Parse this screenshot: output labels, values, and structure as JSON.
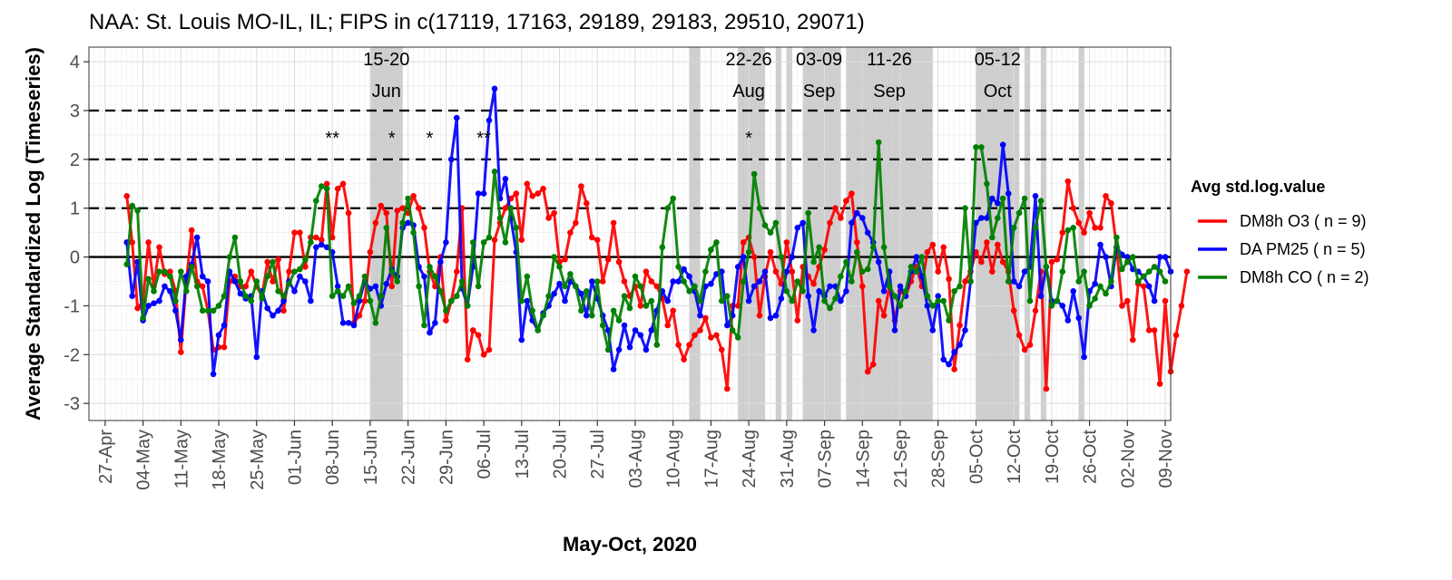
{
  "chart_data": {
    "type": "line",
    "title": "NAA: St. Louis MO-IL, IL; FIPS in c(17119, 17163, 29189, 29183, 29510, 29071)",
    "xlabel": "May-Oct, 2020",
    "ylabel": "Average Standardized Log (Timeseries)",
    "x_range": [
      "2020-04-24",
      "2020-11-10"
    ],
    "ylim": [
      -3.35,
      4.3
    ],
    "y_ticks": [
      -3,
      -2,
      -1,
      0,
      1,
      2,
      3,
      4
    ],
    "x_ticks": [
      {
        "date": "2020-04-27",
        "label": "27-Apr"
      },
      {
        "date": "2020-05-04",
        "label": "04-May"
      },
      {
        "date": "2020-05-11",
        "label": "11-May"
      },
      {
        "date": "2020-05-18",
        "label": "18-May"
      },
      {
        "date": "2020-05-25",
        "label": "25-May"
      },
      {
        "date": "2020-06-01",
        "label": "01-Jun"
      },
      {
        "date": "2020-06-08",
        "label": "08-Jun"
      },
      {
        "date": "2020-06-15",
        "label": "15-Jun"
      },
      {
        "date": "2020-06-22",
        "label": "22-Jun"
      },
      {
        "date": "2020-06-29",
        "label": "29-Jun"
      },
      {
        "date": "2020-07-06",
        "label": "06-Jul"
      },
      {
        "date": "2020-07-13",
        "label": "13-Jul"
      },
      {
        "date": "2020-07-20",
        "label": "20-Jul"
      },
      {
        "date": "2020-07-27",
        "label": "27-Jul"
      },
      {
        "date": "2020-08-03",
        "label": "03-Aug"
      },
      {
        "date": "2020-08-10",
        "label": "10-Aug"
      },
      {
        "date": "2020-08-17",
        "label": "17-Aug"
      },
      {
        "date": "2020-08-24",
        "label": "24-Aug"
      },
      {
        "date": "2020-08-31",
        "label": "31-Aug"
      },
      {
        "date": "2020-09-07",
        "label": "07-Sep"
      },
      {
        "date": "2020-09-14",
        "label": "14-Sep"
      },
      {
        "date": "2020-09-21",
        "label": "21-Sep"
      },
      {
        "date": "2020-09-28",
        "label": "28-Sep"
      },
      {
        "date": "2020-10-05",
        "label": "05-Oct"
      },
      {
        "date": "2020-10-12",
        "label": "12-Oct"
      },
      {
        "date": "2020-10-19",
        "label": "19-Oct"
      },
      {
        "date": "2020-10-26",
        "label": "26-Oct"
      },
      {
        "date": "2020-11-02",
        "label": "02-Nov"
      },
      {
        "date": "2020-11-09",
        "label": "09-Nov"
      }
    ],
    "reference_lines": {
      "solid": [
        0
      ],
      "dashed": [
        1,
        2,
        3
      ]
    },
    "grid": true,
    "legend": {
      "title": "Avg std.log.value",
      "placement": "right",
      "entries": [
        {
          "label": "DM8h O3 ( n = 9)",
          "color": "#ff0000"
        },
        {
          "label": "DA PM25 ( n = 5)",
          "color": "#0000ff"
        },
        {
          "label": "DM8h CO ( n = 2)",
          "color": "#008000"
        }
      ]
    },
    "shaded_periods": [
      {
        "start": "2020-06-15",
        "end": "2020-06-21"
      },
      {
        "start": "2020-08-13",
        "end": "2020-08-15"
      },
      {
        "start": "2020-08-22",
        "end": "2020-08-27"
      },
      {
        "start": "2020-08-29",
        "end": "2020-08-30"
      },
      {
        "start": "2020-08-31",
        "end": "2020-09-01"
      },
      {
        "start": "2020-09-03",
        "end": "2020-09-10"
      },
      {
        "start": "2020-09-11",
        "end": "2020-09-27"
      },
      {
        "start": "2020-10-05",
        "end": "2020-10-13"
      },
      {
        "start": "2020-10-14",
        "end": "2020-10-15"
      },
      {
        "start": "2020-10-17",
        "end": "2020-10-18"
      },
      {
        "start": "2020-10-24",
        "end": "2020-10-25"
      }
    ],
    "period_labels": [
      {
        "date": "2020-06-18",
        "line1": "15-20",
        "line2": "Jun"
      },
      {
        "date": "2020-08-24",
        "line1": "22-26",
        "line2": "Aug"
      },
      {
        "date": "2020-09-06",
        "line1": "03-09",
        "line2": "Sep"
      },
      {
        "date": "2020-09-19",
        "line1": "11-26",
        "line2": "Sep"
      },
      {
        "date": "2020-10-09",
        "line1": "05-12",
        "line2": "Oct"
      }
    ],
    "annotations": [
      {
        "date": "2020-06-08",
        "y": 2.5,
        "text": "**"
      },
      {
        "date": "2020-06-19",
        "y": 2.5,
        "text": "*"
      },
      {
        "date": "2020-06-26",
        "y": 2.5,
        "text": "*"
      },
      {
        "date": "2020-07-06",
        "y": 2.5,
        "text": "**"
      },
      {
        "date": "2020-08-24",
        "y": 2.5,
        "text": "*"
      }
    ],
    "series": [
      {
        "name": "DM8h O3 ( n = 9)",
        "color": "#ff0000",
        "start": "2020-05-01",
        "values": [
          1.25,
          0.3,
          -1.05,
          -0.9,
          0.3,
          -0.6,
          0.2,
          -0.35,
          -0.3,
          -0.7,
          -1.95,
          -0.5,
          0.55,
          -0.5,
          -0.6,
          -1.1,
          -1.9,
          -1.85,
          -1.85,
          -0.5,
          -0.4,
          -0.6,
          -0.6,
          -0.3,
          -0.6,
          -0.8,
          -0.1,
          -0.5,
          -0.05,
          -1.1,
          -0.3,
          0.5,
          0.5,
          -0.2,
          0.4,
          0.4,
          0.35,
          1.5,
          0.4,
          1.4,
          1.5,
          0.9,
          -1.35,
          -1.2,
          -0.9,
          0.1,
          0.7,
          1.05,
          0.9,
          -0.6,
          0.95,
          1.0,
          0.9,
          1.25,
          1.0,
          0.6,
          -0.3,
          -0.6,
          0,
          -1.3,
          -0.9,
          -0.3,
          1.0,
          -2.1,
          -1.5,
          -1.6,
          -2.0,
          -1.9,
          0.35,
          0.7,
          1.0,
          1.2,
          1.3,
          0.35,
          1.5,
          1.25,
          1.3,
          1.4,
          0.8,
          0.9,
          -0.1,
          -0.05,
          0.5,
          0.7,
          1.45,
          1.1,
          0.4,
          0.35,
          -0.5,
          -0.05,
          0.7,
          -0.1,
          -0.5,
          -0.8,
          -0.6,
          -1.0,
          -0.3,
          -0.5,
          -0.6,
          -0.85,
          -1.4,
          -1.1,
          -1.8,
          -2.1,
          -1.8,
          -1.6,
          -1.5,
          -1.25,
          -1.65,
          -1.6,
          -1.9,
          -2.7,
          -1.0,
          -1.0,
          0.3,
          0.4,
          0,
          -1.2,
          -0.4,
          0.1,
          -0.3,
          -0.55,
          0.3,
          -0.3,
          -1.3,
          -0.2,
          -0.4,
          -0.55,
          -0.2,
          0.15,
          0.7,
          1.0,
          0.8,
          1.15,
          1.3,
          0.3,
          -0.6,
          -2.35,
          -2.2,
          -0.9,
          -1.2,
          -0.6,
          -1.3,
          -0.7,
          -0.8,
          -0.5,
          -0.2,
          -0.6,
          0.1,
          0.25,
          -0.3,
          0.2,
          -0.45,
          -2.3,
          -1.4,
          -0.5,
          -0.3,
          0.1,
          -0.1,
          0.3,
          -0.3,
          0.25,
          -0.1,
          -0.3,
          -1.1,
          -1.6,
          -1.9,
          -1.8,
          -1.1,
          -0.3,
          -2.7,
          -0.1,
          -0.05,
          0.5,
          1.55,
          1.0,
          0.7,
          0.5,
          0.9,
          0.6,
          0.6,
          1.25,
          1.1,
          0.2,
          -1.0,
          -0.9,
          -1.7,
          -0.55,
          -0.6,
          -1.5,
          -1.5,
          -2.6,
          -0.9,
          -2.35,
          -1.6,
          -1.0,
          -0.3
        ]
      },
      {
        "name": "DA PM25 ( n = 5)",
        "color": "#0000ff",
        "start": "2020-05-01",
        "values": [
          0.3,
          -0.8,
          -0.1,
          -1.3,
          -1.0,
          -0.95,
          -0.9,
          -0.6,
          -0.7,
          -1.1,
          -1.7,
          -0.4,
          -0.15,
          0.4,
          -0.4,
          -0.5,
          -2.4,
          -1.6,
          -1.4,
          -0.3,
          -0.5,
          -0.75,
          -0.85,
          -0.8,
          -2.05,
          -0.7,
          -1.05,
          -1.2,
          -1.1,
          -0.9,
          -0.5,
          -0.7,
          -0.4,
          -0.5,
          -0.9,
          0.2,
          0.25,
          0.2,
          0.1,
          -0.6,
          -1.35,
          -1.35,
          -1.4,
          -0.9,
          -0.5,
          -0.65,
          -0.6,
          -1.0,
          -0.55,
          -0.25,
          -0.4,
          0.6,
          0.7,
          0.65,
          -0.2,
          -0.4,
          -1.55,
          -1.35,
          -0.1,
          0.3,
          2.0,
          2.85,
          -0.65,
          -1.0,
          -0.2,
          1.3,
          1.3,
          2.8,
          3.45,
          1.2,
          1.6,
          0.8,
          0.1,
          -1.7,
          -0.9,
          -1.3,
          -1.5,
          -1.15,
          -1.0,
          -0.75,
          -0.55,
          -0.9,
          -0.5,
          -0.6,
          -0.75,
          -1.2,
          -0.5,
          -0.85,
          -1.2,
          -1.5,
          -2.3,
          -1.9,
          -1.4,
          -1.85,
          -1.5,
          -1.6,
          -1.9,
          -1.5,
          -1.1,
          -0.7,
          -0.9,
          -0.5,
          -0.5,
          -0.25,
          -0.4,
          -0.7,
          -1.2,
          -0.6,
          -0.55,
          -0.35,
          -0.3,
          -1.4,
          -1.2,
          -0.2,
          0.0,
          -0.9,
          -0.6,
          -0.5,
          -0.3,
          -1.25,
          -1.2,
          -0.85,
          -0.3,
          0.0,
          0.6,
          0.7,
          -0.8,
          -1.5,
          -0.7,
          -0.8,
          -0.6,
          -0.6,
          -0.9,
          -0.7,
          0.7,
          0.9,
          0.8,
          0.5,
          0.3,
          -0.1,
          -0.7,
          -0.3,
          -1.5,
          -0.6,
          -0.8,
          -0.3,
          0.0,
          -0.4,
          -1.0,
          -1.5,
          -0.8,
          -2.1,
          -2.2,
          -1.95,
          -1.8,
          -1.5,
          -0.5,
          0.7,
          0.8,
          0.8,
          1.2,
          1.1,
          2.3,
          1.3,
          -0.5,
          -0.6,
          -0.3,
          -0.2,
          1.25,
          -0.8,
          -0.2,
          -0.9,
          -0.9,
          -1.0,
          -1.3,
          -0.7,
          -1.25,
          -2.05,
          -0.7,
          -0.55,
          0.25,
          0.0,
          -0.6,
          0.2,
          0.05,
          0.0,
          -0.25,
          -0.3,
          -0.4,
          -0.6,
          -0.9,
          0.0,
          0.0,
          -0.3
        ]
      },
      {
        "name": "DM8h CO ( n = 2)",
        "color": "#008000",
        "start": "2020-05-01",
        "values": [
          -0.15,
          1.05,
          0.95,
          -1.25,
          -0.45,
          -0.7,
          -0.3,
          -0.3,
          -0.4,
          -0.9,
          -0.3,
          -0.7,
          -0.2,
          -0.6,
          -1.1,
          -1.1,
          -1.1,
          -1.0,
          -0.8,
          0.0,
          0.4,
          -0.5,
          -0.8,
          -0.9,
          -0.5,
          -0.85,
          -0.4,
          -0.1,
          -0.7,
          -0.8,
          -0.55,
          -0.3,
          -0.25,
          -0.05,
          0.3,
          1.15,
          1.45,
          1.4,
          -0.8,
          -0.7,
          -0.8,
          -0.6,
          -0.95,
          -0.8,
          -0.4,
          -0.9,
          -1.35,
          -0.8,
          0.6,
          -0.3,
          -0.5,
          0.7,
          1.2,
          0.5,
          -0.6,
          -1.4,
          -0.2,
          -0.4,
          -0.7,
          -1.1,
          -0.9,
          -0.8,
          -0.5,
          -1.0,
          0.3,
          -0.6,
          0.3,
          0.4,
          1.75,
          0.8,
          0.3,
          1.0,
          0.6,
          -0.9,
          -0.4,
          -1.1,
          -1.5,
          -1.2,
          -0.8,
          0.0,
          -0.2,
          -0.6,
          -0.35,
          -0.6,
          -1.1,
          -0.7,
          -1.2,
          -0.5,
          -1.4,
          -1.9,
          -1.1,
          -1.3,
          -0.8,
          -1.05,
          -0.4,
          -0.6,
          -1.0,
          -0.9,
          -1.8,
          0.2,
          1.0,
          1.2,
          -0.2,
          -0.5,
          -0.7,
          -0.6,
          -0.9,
          -0.3,
          0.15,
          0.3,
          -0.9,
          -0.8,
          -1.5,
          -1.65,
          -0.5,
          0.1,
          1.7,
          1.0,
          0.65,
          0.5,
          0.7,
          0.0,
          -0.7,
          -0.9,
          -0.5,
          -0.7,
          0.9,
          -0.1,
          0.2,
          -0.9,
          -1.05,
          -0.85,
          -0.4,
          -0.1,
          -0.5,
          0.1,
          -0.3,
          -0.25,
          0.2,
          2.35,
          0.2,
          -0.6,
          -0.8,
          -1.0,
          -0.7,
          -0.2,
          -0.3,
          0.0,
          -0.8,
          -1.0,
          -0.9,
          -0.9,
          -1.3,
          -0.7,
          -0.6,
          1.0,
          -0.5,
          2.25,
          2.25,
          1.5,
          0.4,
          0.8,
          1.2,
          -0.5,
          0.6,
          0.9,
          1.2,
          -0.9,
          0.6,
          1.15,
          -0.2,
          -1.0,
          -0.9,
          -0.3,
          0.55,
          0.6,
          -0.5,
          -0.3,
          -1.0,
          -0.85,
          -0.6,
          -0.75,
          -0.5,
          0.4,
          -0.25,
          -0.1,
          0.0,
          -0.5,
          -0.4,
          -0.3,
          -0.2,
          -0.3,
          -0.5
        ]
      }
    ]
  }
}
